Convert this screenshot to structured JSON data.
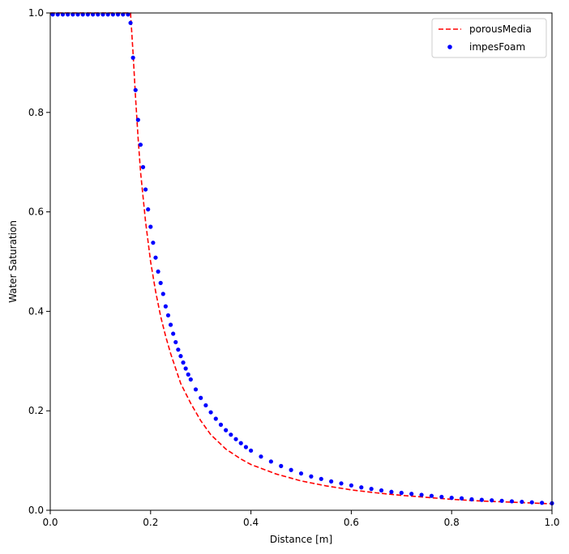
{
  "chart_data": {
    "type": "line",
    "title": "",
    "xlabel": "Distance [m]",
    "ylabel": "Water Saturation",
    "xlim": [
      0,
      1
    ],
    "ylim": [
      0,
      1
    ],
    "xticks": [
      "0.0",
      "0.2",
      "0.4",
      "0.6",
      "0.8",
      "1.0"
    ],
    "yticks": [
      "0.0",
      "0.2",
      "0.4",
      "0.6",
      "0.8",
      "1.0"
    ],
    "grid": false,
    "legend": {
      "placement": "top-right"
    },
    "series": [
      {
        "name": "porousMedia",
        "style": "dashed-line",
        "color": "#ff0000",
        "x": [
          0.0,
          0.05,
          0.1,
          0.15,
          0.16,
          0.165,
          0.17,
          0.175,
          0.18,
          0.185,
          0.19,
          0.195,
          0.2,
          0.205,
          0.21,
          0.215,
          0.22,
          0.23,
          0.24,
          0.25,
          0.26,
          0.27,
          0.28,
          0.3,
          0.32,
          0.35,
          0.38,
          0.4,
          0.45,
          0.5,
          0.55,
          0.6,
          0.65,
          0.7,
          0.75,
          0.8,
          0.85,
          0.9,
          0.95,
          1.0
        ],
        "y": [
          1.0,
          1.0,
          1.0,
          1.0,
          1.0,
          0.92,
          0.83,
          0.75,
          0.68,
          0.63,
          0.58,
          0.54,
          0.5,
          0.47,
          0.44,
          0.415,
          0.39,
          0.35,
          0.315,
          0.285,
          0.255,
          0.235,
          0.215,
          0.18,
          0.152,
          0.123,
          0.103,
          0.092,
          0.073,
          0.059,
          0.049,
          0.041,
          0.035,
          0.03,
          0.026,
          0.022,
          0.019,
          0.017,
          0.015,
          0.013
        ]
      },
      {
        "name": "impesFoam",
        "style": "dots",
        "color": "#0000ff",
        "x": [
          0.005,
          0.015,
          0.025,
          0.035,
          0.045,
          0.055,
          0.065,
          0.075,
          0.085,
          0.095,
          0.105,
          0.115,
          0.125,
          0.135,
          0.145,
          0.155,
          0.16,
          0.165,
          0.17,
          0.175,
          0.18,
          0.185,
          0.19,
          0.195,
          0.2,
          0.205,
          0.21,
          0.215,
          0.22,
          0.225,
          0.23,
          0.235,
          0.24,
          0.245,
          0.25,
          0.255,
          0.26,
          0.265,
          0.27,
          0.275,
          0.28,
          0.29,
          0.3,
          0.31,
          0.32,
          0.33,
          0.34,
          0.35,
          0.36,
          0.37,
          0.38,
          0.39,
          0.4,
          0.42,
          0.44,
          0.46,
          0.48,
          0.5,
          0.52,
          0.54,
          0.56,
          0.58,
          0.6,
          0.62,
          0.64,
          0.66,
          0.68,
          0.7,
          0.72,
          0.74,
          0.76,
          0.78,
          0.8,
          0.82,
          0.84,
          0.86,
          0.88,
          0.9,
          0.92,
          0.94,
          0.96,
          0.98,
          1.0
        ],
        "y": [
          0.997,
          0.997,
          0.997,
          0.997,
          0.997,
          0.997,
          0.997,
          0.997,
          0.997,
          0.997,
          0.997,
          0.997,
          0.997,
          0.997,
          0.997,
          0.997,
          0.98,
          0.91,
          0.845,
          0.785,
          0.735,
          0.69,
          0.645,
          0.605,
          0.57,
          0.538,
          0.508,
          0.48,
          0.457,
          0.435,
          0.41,
          0.392,
          0.373,
          0.355,
          0.338,
          0.323,
          0.31,
          0.297,
          0.285,
          0.273,
          0.263,
          0.243,
          0.226,
          0.211,
          0.197,
          0.184,
          0.172,
          0.161,
          0.152,
          0.143,
          0.135,
          0.127,
          0.12,
          0.108,
          0.098,
          0.089,
          0.081,
          0.074,
          0.068,
          0.063,
          0.058,
          0.054,
          0.05,
          0.046,
          0.043,
          0.04,
          0.037,
          0.035,
          0.033,
          0.031,
          0.029,
          0.027,
          0.025,
          0.024,
          0.022,
          0.021,
          0.02,
          0.019,
          0.018,
          0.017,
          0.016,
          0.015,
          0.014
        ]
      }
    ]
  }
}
